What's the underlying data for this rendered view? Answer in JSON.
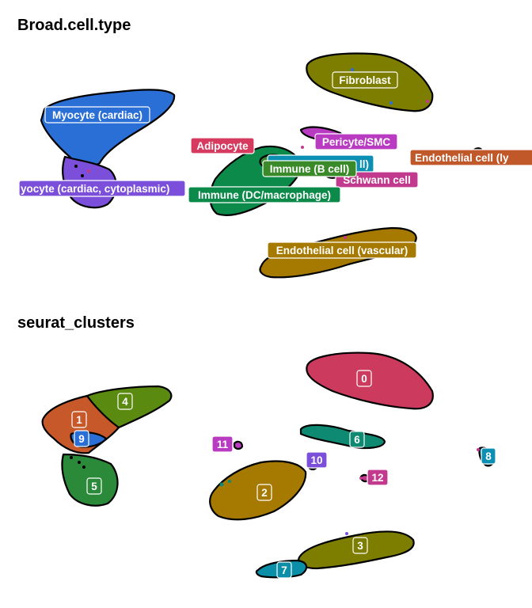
{
  "chart_data": [
    {
      "type": "scatter",
      "title": "Broad.cell.type",
      "grid": false,
      "legend": "none",
      "clusters": [
        {
          "name": "Fibroblast",
          "label": "Fibroblast",
          "color": "#7d7d00"
        },
        {
          "name": "Myocyte (cardiac)",
          "label": "Myocyte (cardiac)",
          "color": "#2a6fd6"
        },
        {
          "name": "Myocyte (cardiac, cytoplasmic)",
          "label": "yocyte (cardiac, cytoplasmic)",
          "color": "#7b4fd9"
        },
        {
          "name": "Adipocyte",
          "label": "Adipocyte",
          "color": "#d63a5e"
        },
        {
          "name": "Pericyte/SMC",
          "label": "Pericyte/SMC",
          "color": "#b93bc2"
        },
        {
          "name": "Endothelial cell (lymphatic)",
          "label": "Endothelial cell (ly",
          "color": "#c0582a"
        },
        {
          "name": "Immune (T cell)",
          "label": "ll)",
          "color": "#0b8fb3"
        },
        {
          "name": "Immune (B cell)",
          "label": "Immune (B cell)",
          "color": "#3a8a2a"
        },
        {
          "name": "Schwann cell",
          "label": "Schwann cell",
          "color": "#c23a8e"
        },
        {
          "name": "Immune (DC/macrophage)",
          "label": "Immune (DC/macrophage)",
          "color": "#0c8a4a"
        },
        {
          "name": "Endothelial cell (vascular)",
          "label": "Endothelial cell (vascular)",
          "color": "#a67a00"
        }
      ]
    },
    {
      "type": "scatter",
      "title": "seurat_clusters",
      "grid": false,
      "legend": "none",
      "clusters": [
        {
          "name": "0",
          "label": "0",
          "color": "#cc3a5e"
        },
        {
          "name": "1",
          "label": "1",
          "color": "#c6582a"
        },
        {
          "name": "2",
          "label": "2",
          "color": "#a67a00"
        },
        {
          "name": "3",
          "label": "3",
          "color": "#7d7d00"
        },
        {
          "name": "4",
          "label": "4",
          "color": "#5b8a10"
        },
        {
          "name": "5",
          "label": "5",
          "color": "#2a8a3a"
        },
        {
          "name": "6",
          "label": "6",
          "color": "#0e8a72"
        },
        {
          "name": "7",
          "label": "7",
          "color": "#0b8fa8"
        },
        {
          "name": "8",
          "label": "8",
          "color": "#0b8fb3"
        },
        {
          "name": "9",
          "label": "9",
          "color": "#2a6fd6"
        },
        {
          "name": "10",
          "label": "10",
          "color": "#7b4fd9"
        },
        {
          "name": "11",
          "label": "11",
          "color": "#b93bc2"
        },
        {
          "name": "12",
          "label": "12",
          "color": "#c23a8e"
        }
      ]
    }
  ]
}
